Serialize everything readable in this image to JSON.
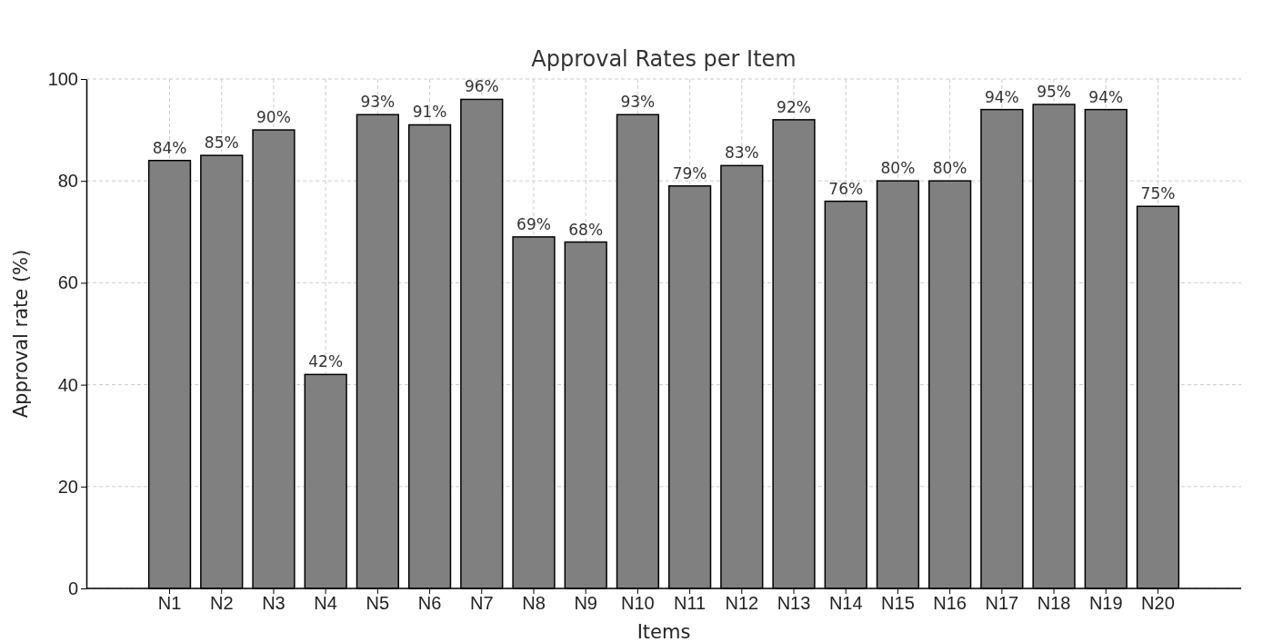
{
  "chart_data": {
    "type": "bar",
    "title": "Approval Rates per Item",
    "xlabel": "Items",
    "ylabel": "Approval rate (%)",
    "categories": [
      "N1",
      "N2",
      "N3",
      "N4",
      "N5",
      "N6",
      "N7",
      "N8",
      "N9",
      "N10",
      "N11",
      "N12",
      "N13",
      "N14",
      "N15",
      "N16",
      "N17",
      "N18",
      "N19",
      "N20"
    ],
    "values": [
      84,
      85,
      90,
      42,
      93,
      91,
      96,
      69,
      68,
      93,
      79,
      83,
      92,
      76,
      80,
      80,
      94,
      95,
      94,
      75
    ],
    "value_labels": [
      "84%",
      "85%",
      "90%",
      "42%",
      "93%",
      "91%",
      "96%",
      "69%",
      "68%",
      "93%",
      "79%",
      "83%",
      "92%",
      "76%",
      "80%",
      "80%",
      "94%",
      "95%",
      "94%",
      "75%"
    ],
    "color": "#808080",
    "ylim": [
      0,
      100
    ],
    "yticks": [
      0,
      20,
      40,
      60,
      80,
      100
    ],
    "grid": true
  }
}
